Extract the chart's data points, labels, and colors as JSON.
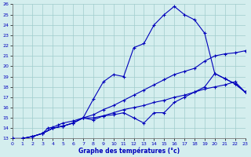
{
  "xlabel": "Graphe des températures (°c)",
  "xlim": [
    0,
    23
  ],
  "ylim": [
    13,
    26
  ],
  "xticks": [
    0,
    1,
    2,
    3,
    4,
    5,
    6,
    7,
    8,
    9,
    10,
    11,
    12,
    13,
    14,
    15,
    16,
    17,
    18,
    19,
    20,
    21,
    22,
    23
  ],
  "yticks": [
    13,
    14,
    15,
    16,
    17,
    18,
    19,
    20,
    21,
    22,
    23,
    24,
    25,
    26
  ],
  "bg_color": "#d4eeee",
  "line_color": "#0000bb",
  "grid_color": "#a0cccc",
  "line1": {
    "x": [
      0,
      1,
      2,
      3,
      3.5,
      4,
      4.5,
      5,
      6,
      7,
      8,
      9,
      10,
      11,
      12,
      13,
      14,
      15,
      16,
      17,
      18,
      19,
      20,
      21,
      22,
      23
    ],
    "y": [
      13,
      13,
      13.2,
      13.5,
      14,
      14.1,
      14.3,
      14.5,
      14.7,
      15.0,
      16.8,
      18.5,
      19.2,
      19.0,
      21.8,
      22.2,
      24.0,
      25.0,
      25.8,
      25.0,
      24.5,
      23.2,
      19.3,
      18.8,
      18.3,
      17.5
    ]
  },
  "line2": {
    "x": [
      0,
      1,
      2,
      3,
      4,
      5,
      6,
      7,
      8,
      9,
      10,
      11,
      12,
      13,
      14,
      15,
      16,
      17,
      18,
      19,
      20,
      21,
      22,
      23
    ],
    "y": [
      13,
      13,
      13.2,
      13.5,
      14,
      14.2,
      14.5,
      15.0,
      14.8,
      15.2,
      15.3,
      15.5,
      15.0,
      14.5,
      15.5,
      15.5,
      16.5,
      17.0,
      17.5,
      18.0,
      19.3,
      18.8,
      18.3,
      17.5
    ]
  },
  "line3": {
    "x": [
      0,
      1,
      2,
      3,
      4,
      5,
      6,
      7,
      8,
      9,
      10,
      11,
      12,
      13,
      14,
      15,
      16,
      17,
      18,
      19,
      20,
      21,
      22,
      23
    ],
    "y": [
      13,
      13,
      13.2,
      13.5,
      14,
      14.2,
      14.5,
      15.0,
      15.3,
      15.8,
      16.2,
      16.7,
      17.2,
      17.7,
      18.2,
      18.7,
      19.2,
      19.5,
      19.8,
      20.5,
      21.0,
      21.2,
      21.3,
      21.5
    ]
  },
  "line4": {
    "x": [
      0,
      1,
      2,
      3,
      4,
      5,
      6,
      7,
      8,
      9,
      10,
      11,
      12,
      13,
      14,
      15,
      16,
      17,
      18,
      19,
      20,
      21,
      22,
      23
    ],
    "y": [
      13,
      13,
      13.2,
      13.5,
      14,
      14.2,
      14.5,
      15.0,
      15.0,
      15.2,
      15.5,
      15.8,
      16.0,
      16.2,
      16.5,
      16.7,
      17.0,
      17.2,
      17.5,
      17.8,
      18.0,
      18.2,
      18.5,
      17.5
    ]
  }
}
